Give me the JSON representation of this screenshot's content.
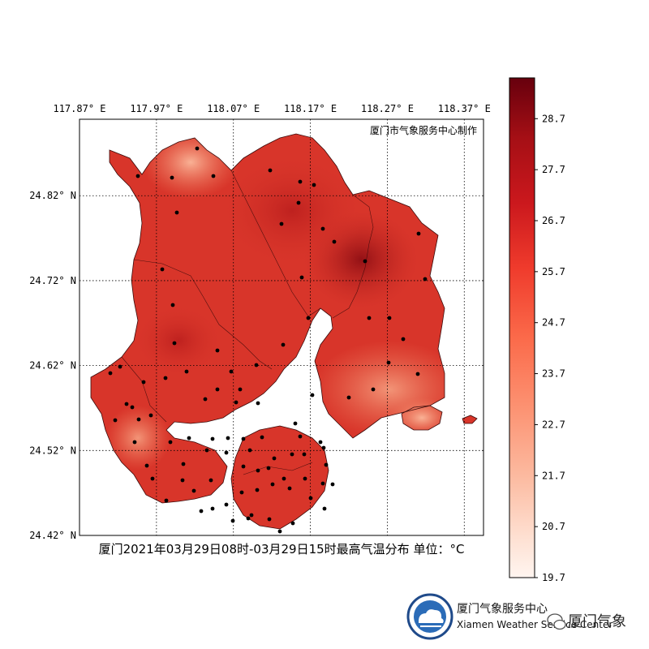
{
  "map": {
    "credit": "厦门市气象服务中心制作",
    "caption": "厦门2021年03月29日08时-03月29日15时最高气温分布 单位：°C",
    "lon_ticks": [
      "117.87° E",
      "117.97° E",
      "118.07° E",
      "118.17° E",
      "118.27° E",
      "118.37° E"
    ],
    "lat_ticks": [
      "24.82° N",
      "24.72° N",
      "24.62° N",
      "24.52° N",
      "24.42° N"
    ],
    "lon_values": [
      117.87,
      117.97,
      118.07,
      118.17,
      118.27,
      118.37
    ],
    "lat_values": [
      24.82,
      24.72,
      24.62,
      24.52,
      24.42
    ],
    "lon_range": [
      117.87,
      118.395
    ],
    "lat_range": [
      24.42,
      24.91
    ],
    "gridlines": true
  },
  "colorbar": {
    "ticks": [
      "28.7",
      "27.7",
      "26.7",
      "25.7",
      "24.7",
      "23.7",
      "22.7",
      "21.7",
      "20.7",
      "19.7"
    ],
    "values": [
      28.7,
      27.7,
      26.7,
      25.7,
      24.7,
      23.7,
      22.7,
      21.7,
      20.7,
      19.7
    ],
    "min": 19.7,
    "max": 29.5,
    "colormap": "Reds"
  },
  "logo": {
    "line1": "厦门气象服务中心",
    "line2": "Xiamen Weather Service Center",
    "wechat": "厦门气象"
  },
  "colors": {
    "fill_dark": "#a11414",
    "fill_main": "#d8352a",
    "fill_light": "#f28566",
    "station": "#000000"
  }
}
